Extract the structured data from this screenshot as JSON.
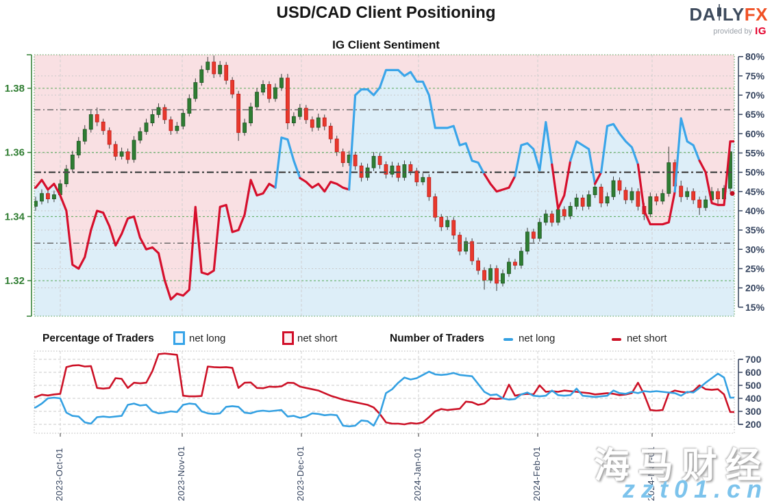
{
  "header": {
    "title": "USD/CAD Client Positioning",
    "subtitle": "IG Client Sentiment",
    "logo": {
      "brand_a": "DA",
      "brand_b": "LY",
      "brand_fx": "FX",
      "provided_by": "provided by",
      "ig": "IG"
    }
  },
  "legend": {
    "percentage_title": "Percentage of Traders",
    "number_title": "Number of Traders",
    "pct_net_long": "net long",
    "pct_net_short": "net short",
    "num_net_long": "net long",
    "num_net_short": "net short"
  },
  "colors": {
    "sent_blue": "#3aa5e9",
    "sent_red": "#d60f2c",
    "count_blue": "#33a0e2",
    "count_red": "#cc1126",
    "candle_green": "#2f7d33",
    "candle_green_edge": "#1c5420",
    "candle_red": "#e8392c",
    "candle_red_edge": "#c21a1a",
    "wick": "#3d3d3d",
    "fill_pink": "#f9e0e3",
    "fill_blue": "#ddeef8",
    "axis_green": "#2f7d31",
    "axis_navy": "#32415c",
    "grid_green": "#53a653",
    "grid_gray": "#c8c8c8",
    "grid_month": "#cfcfcf",
    "dashdot": "#606060",
    "dashdot_mid": "#4d4d4d",
    "end_dot": "#c00d20"
  },
  "x_axis": {
    "labels": [
      "2023-Oct-01",
      "2023-Nov-01",
      "2023-Dec-01",
      "2024-Jan-01",
      "2024-Feb-01",
      "2024-Mar-01"
    ],
    "positions": [
      88,
      266,
      440,
      611,
      785,
      952
    ]
  },
  "chart_data": [
    {
      "type": "candlestick+line",
      "title": "IG Client Sentiment",
      "left_axis": {
        "labels": [
          "1.38",
          "1.36",
          "1.34",
          "1.32"
        ],
        "values": [
          1.38,
          1.36,
          1.34,
          1.32
        ]
      },
      "right_axis": {
        "labels": [
          "80%",
          "75%",
          "70%",
          "65%",
          "60%",
          "55%",
          "50%",
          "45%",
          "40%",
          "35%",
          "30%",
          "25%",
          "20%",
          "15%"
        ],
        "values": [
          80,
          75,
          70,
          65,
          60,
          55,
          50,
          45,
          40,
          35,
          30,
          25,
          20,
          15
        ]
      },
      "dotted_pct_gridlines": [
        75,
        70,
        60,
        55,
        45,
        40,
        35,
        30,
        25,
        20
      ],
      "dashdot_pct_levels": [
        66.2,
        31.6
      ],
      "dashdot_mid_level": 50,
      "net_long_pct": [
        46,
        48,
        45.5,
        47,
        44,
        40,
        26,
        25,
        28,
        35,
        40,
        39.5,
        36,
        31,
        34,
        38,
        38.5,
        33,
        30,
        30.5,
        29,
        22,
        17,
        18.5,
        18,
        19.5,
        41,
        24,
        23.5,
        24.5,
        41,
        41.5,
        34.5,
        35,
        39,
        48,
        44,
        44.5,
        47,
        46,
        59,
        58.5,
        53,
        48.5,
        47.5,
        46,
        47,
        45,
        47.5,
        47,
        46,
        45.5,
        70,
        71.5,
        71.5,
        70,
        72,
        76.5,
        76.5,
        76.5,
        75,
        76,
        73.5,
        73.5,
        70,
        61.5,
        61.5,
        61.5,
        62,
        57,
        57.5,
        53,
        52.5,
        49.5,
        47,
        45,
        45.5,
        46,
        49,
        57,
        57.5,
        56,
        50.5,
        63,
        52,
        40.5,
        44,
        53,
        58,
        57,
        56,
        47,
        50,
        62,
        62.5,
        60,
        58,
        56.5,
        52,
        40,
        36.5,
        36.5,
        36.5,
        37,
        45,
        64,
        58,
        57,
        53,
        50,
        42,
        41.5,
        41.5,
        58
      ],
      "red_tail_from_index": 108,
      "end_dot_pct": 44.5,
      "candles": [
        [
          1.3432,
          1.3462,
          1.3418,
          1.3448
        ],
        [
          1.3448,
          1.3485,
          1.3438,
          1.3472
        ],
        [
          1.3472,
          1.3482,
          1.3442,
          1.3455
        ],
        [
          1.3455,
          1.3481,
          1.3445,
          1.3468
        ],
        [
          1.3468,
          1.3515,
          1.3458,
          1.3502
        ],
        [
          1.3502,
          1.3561,
          1.3492,
          1.3548
        ],
        [
          1.3548,
          1.3605,
          1.3538,
          1.3592
        ],
        [
          1.3592,
          1.3648,
          1.3582,
          1.3635
        ],
        [
          1.3635,
          1.3685,
          1.3625,
          1.3672
        ],
        [
          1.3672,
          1.3731,
          1.3662,
          1.3718
        ],
        [
          1.3718,
          1.374,
          1.3682,
          1.3695
        ],
        [
          1.3695,
          1.3705,
          1.3655,
          1.3668
        ],
        [
          1.3668,
          1.3678,
          1.3612,
          1.3625
        ],
        [
          1.3625,
          1.3635,
          1.3575,
          1.3588
        ],
        [
          1.3588,
          1.3615,
          1.3578,
          1.3602
        ],
        [
          1.3602,
          1.3612,
          1.3565,
          1.3578
        ],
        [
          1.3578,
          1.3651,
          1.3568,
          1.3638
        ],
        [
          1.3638,
          1.3678,
          1.3628,
          1.3665
        ],
        [
          1.3665,
          1.3705,
          1.3655,
          1.3692
        ],
        [
          1.3692,
          1.3731,
          1.3682,
          1.3718
        ],
        [
          1.3718,
          1.3753,
          1.3708,
          1.374
        ],
        [
          1.374,
          1.375,
          1.3689,
          1.3702
        ],
        [
          1.3702,
          1.3712,
          1.3655,
          1.3668
        ],
        [
          1.3668,
          1.3695,
          1.3658,
          1.3682
        ],
        [
          1.3682,
          1.3735,
          1.3672,
          1.3722
        ],
        [
          1.3722,
          1.3781,
          1.3712,
          1.3768
        ],
        [
          1.3768,
          1.3831,
          1.3758,
          1.3818
        ],
        [
          1.3818,
          1.3871,
          1.3808,
          1.3858
        ],
        [
          1.3858,
          1.3898,
          1.3848,
          1.3882
        ],
        [
          1.3882,
          1.3902,
          1.3832,
          1.3845
        ],
        [
          1.3845,
          1.3885,
          1.3835,
          1.3872
        ],
        [
          1.3872,
          1.3882,
          1.3812,
          1.3825
        ],
        [
          1.3825,
          1.3835,
          1.3769,
          1.3782
        ],
        [
          1.3782,
          1.3792,
          1.3636,
          1.3662
        ],
        [
          1.3662,
          1.3705,
          1.3652,
          1.3692
        ],
        [
          1.3692,
          1.3755,
          1.3682,
          1.3742
        ],
        [
          1.3742,
          1.3801,
          1.3732,
          1.3788
        ],
        [
          1.3788,
          1.3825,
          1.3778,
          1.3812
        ],
        [
          1.3812,
          1.3822,
          1.3755,
          1.3768
        ],
        [
          1.3768,
          1.3815,
          1.3758,
          1.3802
        ],
        [
          1.3802,
          1.3845,
          1.3792,
          1.3832
        ],
        [
          1.3832,
          1.3845,
          1.3672,
          1.3692
        ],
        [
          1.3692,
          1.3725,
          1.3682,
          1.3712
        ],
        [
          1.3712,
          1.3751,
          1.3702,
          1.3738
        ],
        [
          1.3738,
          1.3748,
          1.3689,
          1.3702
        ],
        [
          1.3702,
          1.3712,
          1.3665,
          1.3678
        ],
        [
          1.3678,
          1.3721,
          1.3668,
          1.3708
        ],
        [
          1.3708,
          1.3718,
          1.3669,
          1.3682
        ],
        [
          1.3682,
          1.3692,
          1.3629,
          1.3642
        ],
        [
          1.3642,
          1.3652,
          1.3589,
          1.3602
        ],
        [
          1.3602,
          1.3612,
          1.3555,
          1.3568
        ],
        [
          1.3568,
          1.3605,
          1.3558,
          1.3592
        ],
        [
          1.3592,
          1.3602,
          1.3545,
          1.3558
        ],
        [
          1.3558,
          1.3568,
          1.3509,
          1.3522
        ],
        [
          1.3522,
          1.3565,
          1.3512,
          1.3552
        ],
        [
          1.3552,
          1.3601,
          1.3542,
          1.3588
        ],
        [
          1.3588,
          1.3598,
          1.3549,
          1.3562
        ],
        [
          1.3562,
          1.3572,
          1.3519,
          1.3532
        ],
        [
          1.3532,
          1.3571,
          1.3522,
          1.3558
        ],
        [
          1.3558,
          1.3568,
          1.3509,
          1.3522
        ],
        [
          1.3522,
          1.3575,
          1.3512,
          1.3562
        ],
        [
          1.3562,
          1.3572,
          1.3529,
          1.3542
        ],
        [
          1.3542,
          1.3552,
          1.3495,
          1.3508
        ],
        [
          1.3508,
          1.3535,
          1.3498,
          1.3522
        ],
        [
          1.3522,
          1.3532,
          1.3449,
          1.3462
        ],
        [
          1.3462,
          1.3472,
          1.3385,
          1.3398
        ],
        [
          1.3398,
          1.3408,
          1.3355,
          1.3368
        ],
        [
          1.3368,
          1.3401,
          1.3358,
          1.3388
        ],
        [
          1.3388,
          1.3398,
          1.3329,
          1.3342
        ],
        [
          1.3342,
          1.3352,
          1.3279,
          1.3292
        ],
        [
          1.3292,
          1.3335,
          1.3282,
          1.3322
        ],
        [
          1.3322,
          1.3332,
          1.3249,
          1.3262
        ],
        [
          1.3262,
          1.3272,
          1.3219,
          1.3232
        ],
        [
          1.3232,
          1.3242,
          1.3172,
          1.3202
        ],
        [
          1.3202,
          1.3251,
          1.3192,
          1.3238
        ],
        [
          1.3238,
          1.3248,
          1.3168,
          1.3192
        ],
        [
          1.3192,
          1.3235,
          1.3182,
          1.3222
        ],
        [
          1.3222,
          1.3271,
          1.3212,
          1.3258
        ],
        [
          1.3258,
          1.3268,
          1.3235,
          1.3248
        ],
        [
          1.3248,
          1.3305,
          1.3238,
          1.3292
        ],
        [
          1.3292,
          1.3365,
          1.3282,
          1.3352
        ],
        [
          1.3352,
          1.3362,
          1.3319,
          1.3332
        ],
        [
          1.3332,
          1.3395,
          1.3322,
          1.3382
        ],
        [
          1.3382,
          1.3421,
          1.3372,
          1.3408
        ],
        [
          1.3408,
          1.3418,
          1.3369,
          1.3382
        ],
        [
          1.3382,
          1.3435,
          1.3372,
          1.3422
        ],
        [
          1.3422,
          1.3432,
          1.3389,
          1.3402
        ],
        [
          1.3402,
          1.3445,
          1.3392,
          1.3432
        ],
        [
          1.3432,
          1.3471,
          1.3422,
          1.3458
        ],
        [
          1.3458,
          1.3468,
          1.3419,
          1.3432
        ],
        [
          1.3432,
          1.3481,
          1.3422,
          1.3468
        ],
        [
          1.3468,
          1.3505,
          1.3458,
          1.3492
        ],
        [
          1.3492,
          1.3502,
          1.3429,
          1.3442
        ],
        [
          1.3442,
          1.3475,
          1.3432,
          1.3462
        ],
        [
          1.3462,
          1.3525,
          1.3452,
          1.3512
        ],
        [
          1.3512,
          1.3522,
          1.3469,
          1.3482
        ],
        [
          1.3482,
          1.3492,
          1.3439,
          1.3452
        ],
        [
          1.3452,
          1.3491,
          1.3442,
          1.3478
        ],
        [
          1.3478,
          1.3488,
          1.3419,
          1.3432
        ],
        [
          1.3432,
          1.3442,
          1.3389,
          1.3408
        ],
        [
          1.3408,
          1.3475,
          1.3398,
          1.3462
        ],
        [
          1.3462,
          1.3472,
          1.3435,
          1.3448
        ],
        [
          1.3448,
          1.3485,
          1.3438,
          1.3472
        ],
        [
          1.3472,
          1.3618,
          1.3462,
          1.3568
        ],
        [
          1.3568,
          1.3578,
          1.3482,
          1.3495
        ],
        [
          1.3495,
          1.3512,
          1.3445,
          1.3462
        ],
        [
          1.3462,
          1.3491,
          1.3452,
          1.3478
        ],
        [
          1.3478,
          1.3488,
          1.3439,
          1.3452
        ],
        [
          1.3452,
          1.3462,
          1.3405,
          1.3428
        ],
        [
          1.3428,
          1.3465,
          1.3418,
          1.3452
        ],
        [
          1.3452,
          1.3492,
          1.3442,
          1.3478
        ],
        [
          1.3478,
          1.3488,
          1.3435,
          1.3455
        ],
        [
          1.3455,
          1.3498,
          1.3445,
          1.3488
        ],
        [
          1.3488,
          1.3628,
          1.3478,
          1.3602
        ]
      ]
    },
    {
      "type": "line",
      "title": "Number of Traders",
      "right_axis": {
        "labels": [
          "700",
          "600",
          "500",
          "400",
          "300",
          "200"
        ],
        "values": [
          700,
          600,
          500,
          400,
          300,
          200
        ]
      },
      "series": [
        {
          "name": "net long",
          "values": [
            330,
            360,
            400,
            405,
            400,
            290,
            265,
            260,
            215,
            205,
            255,
            260,
            255,
            260,
            265,
            350,
            360,
            345,
            350,
            300,
            285,
            290,
            300,
            295,
            350,
            360,
            355,
            300,
            285,
            280,
            285,
            335,
            340,
            335,
            290,
            285,
            300,
            305,
            300,
            305,
            310,
            260,
            265,
            250,
            260,
            285,
            280,
            270,
            275,
            270,
            190,
            185,
            190,
            230,
            225,
            190,
            280,
            440,
            470,
            520,
            560,
            545,
            555,
            580,
            605,
            585,
            580,
            585,
            595,
            580,
            575,
            570,
            510,
            450,
            425,
            430,
            400,
            390,
            395,
            430,
            445,
            420,
            415,
            420,
            460,
            425,
            420,
            425,
            475,
            420,
            415,
            410,
            415,
            420,
            460,
            440,
            435,
            450,
            440,
            455,
            450,
            455,
            450,
            445,
            440,
            420,
            450,
            445,
            480,
            520,
            555,
            590,
            560,
            405
          ]
        },
        {
          "name": "net short",
          "values": [
            410,
            428,
            422,
            430,
            435,
            640,
            652,
            655,
            645,
            648,
            480,
            475,
            480,
            555,
            550,
            480,
            520,
            515,
            520,
            610,
            740,
            745,
            740,
            735,
            420,
            415,
            415,
            418,
            645,
            640,
            638,
            640,
            635,
            480,
            520,
            522,
            480,
            478,
            490,
            488,
            492,
            520,
            518,
            490,
            480,
            470,
            460,
            440,
            420,
            405,
            390,
            380,
            370,
            360,
            350,
            330,
            280,
            215,
            205,
            205,
            200,
            210,
            205,
            215,
            255,
            300,
            318,
            310,
            315,
            320,
            375,
            370,
            350,
            360,
            400,
            395,
            400,
            505,
            420,
            430,
            435,
            430,
            500,
            450,
            455,
            450,
            460,
            455,
            450,
            445,
            440,
            430,
            435,
            440,
            435,
            425,
            430,
            440,
            520,
            430,
            310,
            305,
            310,
            440,
            460,
            450,
            445,
            455,
            500,
            470,
            465,
            470,
            430,
            295
          ]
        }
      ]
    }
  ],
  "watermark": {
    "line1": "海马财经",
    "line2": "zzt01.cn"
  }
}
